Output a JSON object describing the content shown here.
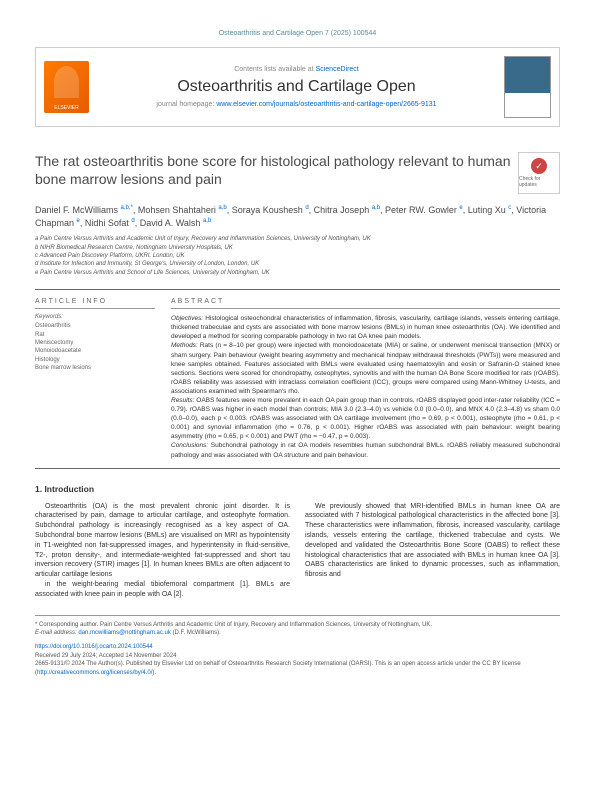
{
  "header": {
    "citation": "Osteoarthritis and Cartilage Open 7 (2025) 100544",
    "contents_prefix": "Contents lists available at ",
    "contents_link": "ScienceDirect",
    "journal_name": "Osteoarthritis and Cartilage Open",
    "homepage_prefix": "journal homepage: ",
    "homepage_url": "www.elsevier.com/journals/osteoarthritis-and-cartilage-open/2665-9131",
    "publisher": "ELSEVIER"
  },
  "article": {
    "title": "The rat osteoarthritis bone score for histological pathology relevant to human bone marrow lesions and pain",
    "updates_label": "Check for updates",
    "authors_html": "Daniel F. McWilliams <sup>a,b,*</sup>, Mohsen Shahtaheri <sup>a,b</sup>, Soraya Koushesh <sup>d</sup>, Chitra Joseph <sup>a,b</sup>, Peter RW. Gowler <sup>e</sup>, Luting Xu <sup>c</sup>, Victoria Chapman <sup>e</sup>, Nidhi Sofat <sup>d</sup>, David A. Walsh <sup>a,b</sup>"
  },
  "affiliations": [
    "a Pain Centre Versus Arthritis and Academic Unit of Injury, Recovery and Inflammation Sciences, University of Nottingham, UK",
    "b NIHR Biomedical Research Centre, Nottingham University Hospitals, UK",
    "c Advanced Pain Discovery Platform, UKRI, London, UK",
    "d Institute for Infection and Immunity, St George's, University of London, London, UK",
    "e Pain Centre Versus Arthritis and School of Life Sciences, University of Nottingham, UK"
  ],
  "article_info": {
    "heading": "ARTICLE INFO",
    "keywords_label": "Keywords:",
    "keywords": [
      "Osteoarthritis",
      "Rat",
      "Meniscectomy",
      "Monoiodoacetate",
      "Histology",
      "Bone marrow lesions"
    ]
  },
  "abstract": {
    "heading": "ABSTRACT",
    "objectives_label": "Objectives:",
    "objectives": " Histological osteochondral characteristics of inflammation, fibrosis, vascularity, cartilage islands, vessels entering cartilage, thickened trabeculae and cysts are associated with bone marrow lesions (BMLs) in human knee osteoarthritis (OA). We identified and developed a method for scoring comparable pathology in two rat OA knee pain models.",
    "methods_label": "Methods:",
    "methods": " Rats (n = 8–10 per group) were injected with monoiodoacetate (MIA) or saline, or underwent meniscal transection (MNX) or sham surgery. Pain behaviour (weight bearing asymmetry and mechanical hindpaw withdrawal thresholds (PWTs)) were measured and knee samples obtained. Features associated with BMLs were evaluated using haematoxylin and eosin or Safranin-O stained knee sections. Sections were scored for chondropathy, osteophytes, synovitis and with the human OA Bone Score modified for rats (rOABS). rOABS reliability was assessed with intraclass correlation coefficient (ICC), groups were compared using Mann-Whitney U-tests, and associations examined with Spearman's rho.",
    "results_label": "Results:",
    "results": " OABS features were more prevalent in each OA pain group than in controls. rOABS displayed good inter-rater reliability (ICC = 0.79). rOABS was higher in each model than controls; MIA 3.0 (2.3–4.0) vs vehicle 0.0 (0.0–0.0), and MNX 4.0 (2.3–4.8) vs sham 0.0 (0.0–0.0), each p < 0.003. rOABS was associated with OA cartilage involvement (rho = 0.69, p < 0.001), osteophyte (rho = 0.61, p < 0.001) and synovial inflammation (rho = 0.76, p < 0.001). Higher rOABS was associated with pain behaviour: weight bearing asymmetry (rho = 0.65, p < 0.001) and PWT (rho = −0.47, p = 0.003).",
    "conclusions_label": "Conclusions:",
    "conclusions": " Subchondral pathology in rat OA models resembles human subchondral BMLs. rOABS reliably measured subchondral pathology and was associated with OA structure and pain behaviour."
  },
  "introduction": {
    "heading": "1. Introduction",
    "para1": "Osteoarthritis (OA) is the most prevalent chronic joint disorder. It is characterised by pain, damage to articular cartilage, and osteophyte formation. Subchondral pathology is increasingly recognised as a key aspect of OA. Subchondral bone marrow lesions (BMLs) are visualised on MRI as hypointensity in T1-weighted non fat-suppressed images, and hyperintensity in fluid-sensitive, T2-, proton density-, and intermediate-weighted fat-suppressed and short tau inversion recovery (STIR) images [1]. In human knees BMLs are often adjacent to articular cartilage lesions",
    "para2": "in the weight-bearing medial tibiofemoral compartment [1]. BMLs are associated with knee pain in people with OA [2].",
    "para3": "We previously showed that MRI-identified BMLs in human knee OA are associated with 7 histological pathological characteristics in the affected bone [3]. These characteristics were inflammation, fibrosis, increased vascularity, cartilage islands, vessels entering the cartilage, thickened trabeculae and cysts. We developed and validated the Osteoarthritis Bone Score (OABS) to reflect these histological characteristics that are associated with BMLs in human knee OA [3]. OABS characteristics are linked to dynamic processes, such as inflammation, fibrosis and"
  },
  "footer": {
    "corresponding": "* Corresponding author. Pain Centre Versus Arthritis and Academic Unit of Injury, Recovery and Inflammation Sciences, University of Nottingham, UK.",
    "email_label": "E-mail address: ",
    "email": "dan.mcwilliams@nottingham.ac.uk",
    "email_suffix": " (D.F. McWilliams).",
    "doi": "https://doi.org/10.1016/j.ocarto.2024.100544",
    "received": "Received 29 July 2024; Accepted 14 November 2024",
    "copyright": "2665-9131/© 2024 The Author(s). Published by Elsevier Ltd on behalf of Osteoarthritis Research Society International (OARSI). This is an open access article under the CC BY license (",
    "license_url": "http://creativecommons.org/licenses/by/4.0/",
    "copyright_end": ")."
  }
}
